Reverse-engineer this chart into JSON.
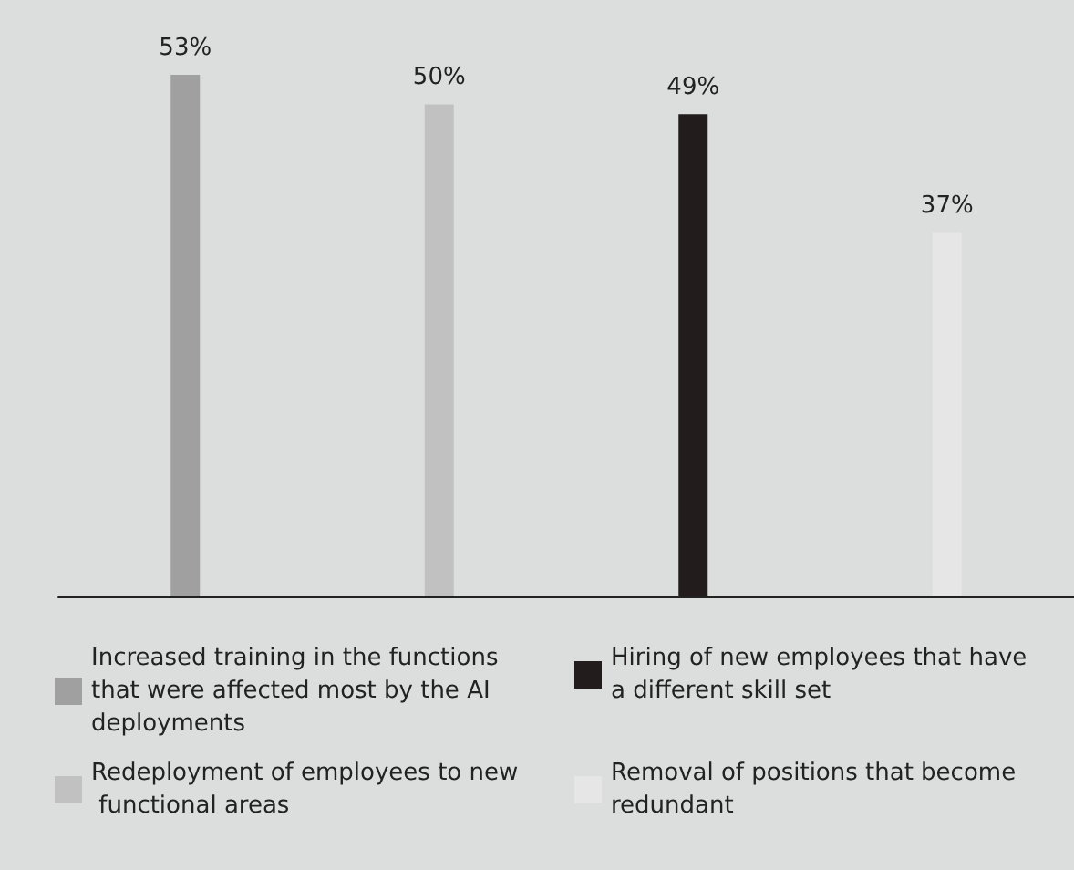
{
  "chart_data": {
    "type": "bar",
    "categories": [
      null,
      null,
      null,
      null
    ],
    "stacked": true,
    "legend": "bottom",
    "grid": false,
    "series": [
      {
        "name": "Increased training in the functions that were affected most by the AI deployments",
        "color": "#9fa09f",
        "values": [
          53,
          null,
          null,
          null
        ],
        "value_labels": [
          "53%",
          null,
          null,
          null
        ]
      },
      {
        "name": "Redeployment of employees to new functional areas",
        "color": "#c0c1c0",
        "values": [
          null,
          50,
          null,
          null
        ],
        "value_labels": [
          null,
          "50%",
          null,
          null
        ]
      },
      {
        "name": "Hiring of new employees that have a different skill set",
        "color": "#221c1c",
        "values": [
          null,
          null,
          49,
          null
        ],
        "value_labels": [
          null,
          null,
          "49%",
          null
        ]
      },
      {
        "name": "Removal of positions that become redundant",
        "color": "#e6e6e6",
        "values": [
          null,
          null,
          null,
          37
        ],
        "value_labels": [
          null,
          null,
          null,
          "37%"
        ]
      }
    ]
  }
}
